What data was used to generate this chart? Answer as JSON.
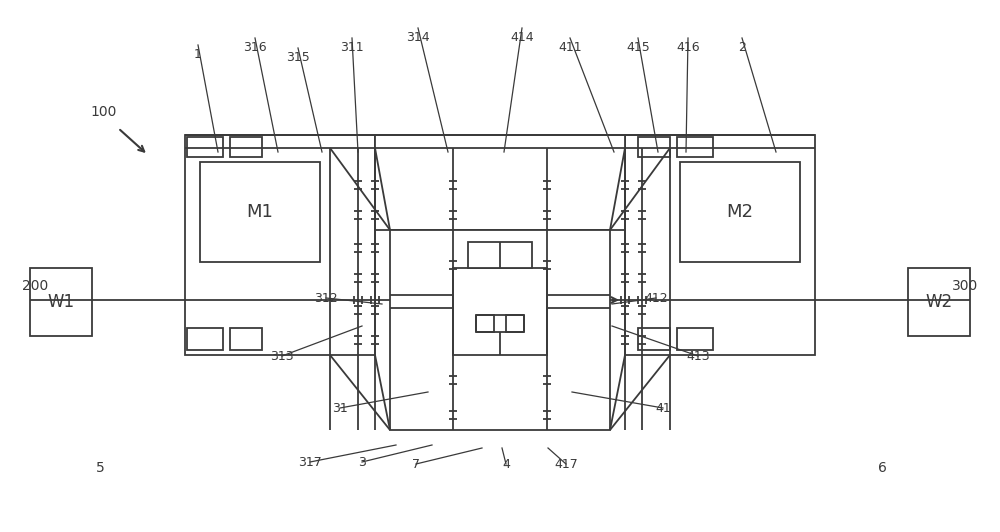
{
  "bg_color": "#ffffff",
  "line_color": "#3a3a3a",
  "figsize": [
    10.0,
    5.32
  ],
  "dpi": 100,
  "top_labels": [
    [
      "1",
      198,
      45,
      218,
      152
    ],
    [
      "316",
      255,
      38,
      278,
      152
    ],
    [
      "315",
      298,
      48,
      322,
      152
    ],
    [
      "311",
      352,
      38,
      358,
      152
    ],
    [
      "314",
      418,
      28,
      448,
      152
    ],
    [
      "414",
      522,
      28,
      504,
      152
    ],
    [
      "411",
      570,
      38,
      614,
      152
    ],
    [
      "415",
      638,
      38,
      658,
      152
    ],
    [
      "416",
      688,
      38,
      686,
      152
    ],
    [
      "2",
      742,
      38,
      776,
      152
    ]
  ],
  "side_labels": [
    [
      "312",
      326,
      298,
      382,
      304
    ],
    [
      "412",
      656,
      298,
      612,
      304
    ],
    [
      "313",
      282,
      356,
      362,
      326
    ],
    [
      "413",
      698,
      356,
      612,
      326
    ],
    [
      "31",
      340,
      408,
      428,
      392
    ],
    [
      "41",
      663,
      408,
      572,
      392
    ],
    [
      "317",
      310,
      462,
      396,
      445
    ],
    [
      "3",
      362,
      462,
      432,
      445
    ],
    [
      "7",
      416,
      464,
      482,
      448
    ],
    [
      "4",
      506,
      464,
      502,
      448
    ],
    [
      "417",
      566,
      464,
      548,
      448
    ]
  ]
}
